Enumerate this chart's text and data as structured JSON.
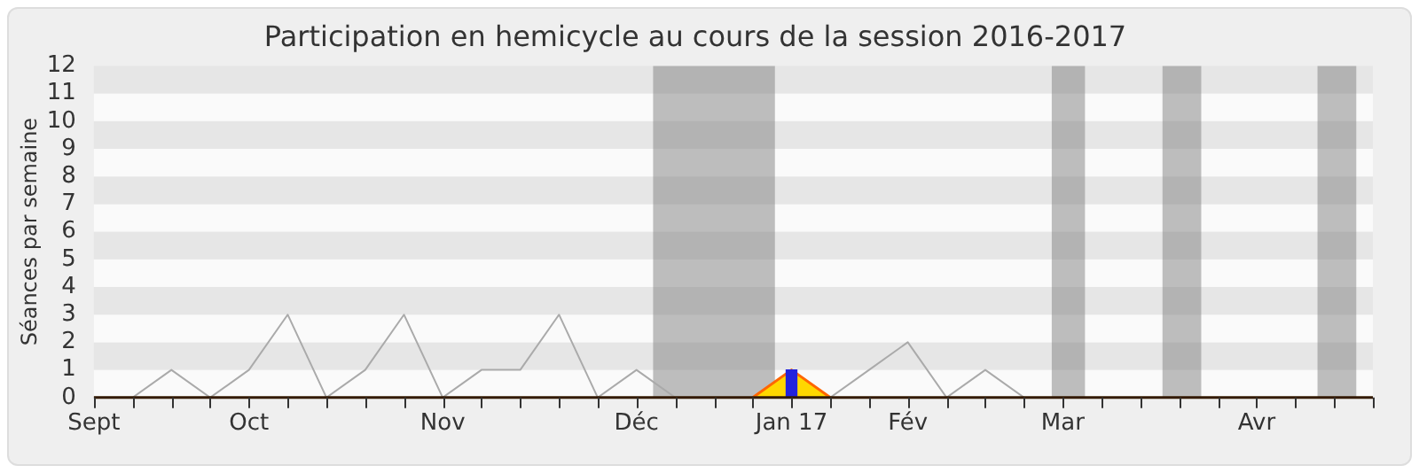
{
  "chart_data": {
    "type": "line",
    "title": "Participation en hemicycle au cours de la session 2016-2017",
    "ylabel": "Séances par semaine",
    "xlim": [
      "2016-09-07",
      "2017-04-26"
    ],
    "xticks": [
      {
        "value": "2016-09-07",
        "label": "Sept"
      },
      {
        "value": "2016-09-14",
        "label": null
      },
      {
        "value": "2016-09-21",
        "label": null
      },
      {
        "value": "2016-09-28",
        "label": null
      },
      {
        "value": "2016-10-05",
        "label": "Oct"
      },
      {
        "value": "2016-10-12",
        "label": null
      },
      {
        "value": "2016-10-19",
        "label": null
      },
      {
        "value": "2016-10-26",
        "label": null
      },
      {
        "value": "2016-11-02",
        "label": null
      },
      {
        "value": "2016-11-09",
        "label": "Nov"
      },
      {
        "value": "2016-11-16",
        "label": null
      },
      {
        "value": "2016-11-23",
        "label": null
      },
      {
        "value": "2016-11-30",
        "label": null
      },
      {
        "value": "2016-12-07",
        "label": null
      },
      {
        "value": "2016-12-14",
        "label": "Déc"
      },
      {
        "value": "2016-12-21",
        "label": null
      },
      {
        "value": "2016-12-28",
        "label": null
      },
      {
        "value": "2017-01-04",
        "label": null
      },
      {
        "value": "2017-01-11",
        "label": "Jan 17"
      },
      {
        "value": "2017-01-18",
        "label": null
      },
      {
        "value": "2017-01-25",
        "label": null
      },
      {
        "value": "2017-02-01",
        "label": "Fév"
      },
      {
        "value": "2017-02-08",
        "label": null
      },
      {
        "value": "2017-02-15",
        "label": null
      },
      {
        "value": "2017-02-22",
        "label": null
      },
      {
        "value": "2017-03-01",
        "label": "Mar"
      },
      {
        "value": "2017-03-08",
        "label": null
      },
      {
        "value": "2017-03-15",
        "label": null
      },
      {
        "value": "2017-03-22",
        "label": null
      },
      {
        "value": "2017-03-29",
        "label": null
      },
      {
        "value": "2017-04-05",
        "label": "Avr"
      },
      {
        "value": "2017-04-12",
        "label": null
      },
      {
        "value": "2017-04-19",
        "label": null
      },
      {
        "value": "2017-04-26",
        "label": null
      }
    ],
    "ylim": [
      0,
      12
    ],
    "yticks": [
      0,
      1,
      2,
      3,
      4,
      5,
      6,
      7,
      8,
      9,
      10,
      11,
      12
    ],
    "marker": "none",
    "series": [
      {
        "color": "#aaaaaa",
        "x": [
          "2016-09-07",
          "2016-09-14",
          "2016-09-21",
          "2016-09-28",
          "2016-10-05",
          "2016-10-12",
          "2016-10-19",
          "2016-10-26",
          "2016-11-02",
          "2016-11-09",
          "2016-11-16",
          "2016-11-23",
          "2016-11-30",
          "2016-12-07",
          "2016-12-14",
          "2016-12-21",
          "2017-01-18",
          "2017-01-25",
          "2017-02-01",
          "2017-02-08",
          "2017-02-15",
          "2017-02-22"
        ],
        "values": [
          0,
          0,
          1,
          0,
          1,
          3,
          0,
          1,
          3,
          0,
          1,
          1,
          3,
          0,
          1,
          0,
          0,
          1,
          2,
          0,
          1,
          0
        ]
      },
      {
        "type": "area",
        "color": "#ffd700",
        "x": [
          "2017-01-04",
          "2017-01-11",
          "2017-01-18"
        ],
        "values": [
          0,
          1,
          0
        ]
      },
      {
        "type": "bar",
        "color": "#2222dd",
        "x": [
          "2017-01-11"
        ],
        "values": [
          1
        ]
      }
    ],
    "bands": [
      {
        "axis": "x",
        "from": "2016-12-17",
        "to": "2017-01-08",
        "color": "#808080"
      },
      {
        "axis": "x",
        "from": "2017-02-27",
        "to": "2017-03-05",
        "color": "#808080"
      },
      {
        "axis": "x",
        "from": "2017-03-19",
        "to": "2017-03-26",
        "color": "#808080"
      },
      {
        "axis": "x",
        "from": "2017-04-16",
        "to": "2017-04-23",
        "color": "#808080"
      }
    ]
  }
}
